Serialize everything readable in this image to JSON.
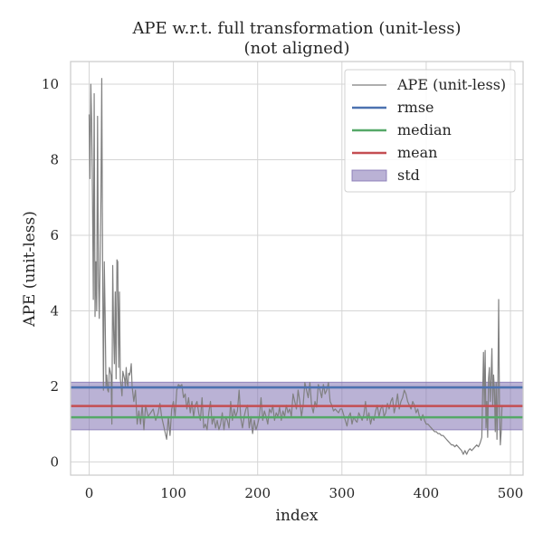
{
  "chart_data": {
    "type": "line",
    "title": "APE w.r.t. full transformation (unit-less)",
    "subtitle": "(not aligned)",
    "xlabel": "index",
    "ylabel": "APE (unit-less)",
    "xlim": [
      -22,
      515
    ],
    "ylim": [
      -0.35,
      10.6
    ],
    "xticks": [
      0,
      100,
      200,
      300,
      400,
      500
    ],
    "yticks": [
      0,
      2,
      4,
      6,
      8,
      10
    ],
    "grid": true,
    "legend_position": "top-right",
    "series": [
      {
        "name": "APE (unit-less)",
        "kind": "line",
        "color": "#808080",
        "points": [
          [
            0,
            9.2
          ],
          [
            1,
            7.5
          ],
          [
            2,
            10.0
          ],
          [
            3,
            9.0
          ],
          [
            4,
            7.0
          ],
          [
            5,
            4.3
          ],
          [
            6,
            9.75
          ],
          [
            7,
            3.85
          ],
          [
            8,
            5.3
          ],
          [
            9,
            4.0
          ],
          [
            10,
            9.15
          ],
          [
            11,
            5.0
          ],
          [
            12,
            3.8
          ],
          [
            13,
            5.3
          ],
          [
            14,
            7.0
          ],
          [
            15,
            10.15
          ],
          [
            16,
            5.2
          ],
          [
            17,
            1.9
          ],
          [
            18,
            5.3
          ],
          [
            19,
            3.9
          ],
          [
            20,
            2.0
          ],
          [
            21,
            2.3
          ],
          [
            22,
            1.9
          ],
          [
            23,
            1.85
          ],
          [
            24,
            2.5
          ],
          [
            25,
            2.4
          ],
          [
            26,
            2.3
          ],
          [
            27,
            1.0
          ],
          [
            28,
            5.2
          ],
          [
            29,
            3.5
          ],
          [
            30,
            2.6
          ],
          [
            31,
            4.5
          ],
          [
            32,
            2.2
          ],
          [
            33,
            5.35
          ],
          [
            34,
            5.3
          ],
          [
            35,
            2.5
          ],
          [
            36,
            4.5
          ],
          [
            37,
            2.2
          ],
          [
            38,
            2.0
          ],
          [
            39,
            1.75
          ],
          [
            40,
            2.4
          ],
          [
            41,
            2.3
          ],
          [
            42,
            2.2
          ],
          [
            43,
            2.0
          ],
          [
            44,
            2.5
          ],
          [
            45,
            2.1
          ],
          [
            46,
            2.0
          ],
          [
            47,
            2.35
          ],
          [
            48,
            2.3
          ],
          [
            49,
            2.4
          ],
          [
            50,
            2.6
          ],
          [
            51,
            2.0
          ],
          [
            53,
            1.6
          ],
          [
            55,
            1.9
          ],
          [
            57,
            1.0
          ],
          [
            59,
            1.35
          ],
          [
            61,
            1.0
          ],
          [
            63,
            1.5
          ],
          [
            65,
            0.85
          ],
          [
            67,
            1.5
          ],
          [
            70,
            1.2
          ],
          [
            73,
            1.3
          ],
          [
            76,
            1.4
          ],
          [
            79,
            1.1
          ],
          [
            82,
            1.3
          ],
          [
            84,
            1.55
          ],
          [
            86,
            1.2
          ],
          [
            88,
            1.0
          ],
          [
            90,
            0.8
          ],
          [
            92,
            0.6
          ],
          [
            94,
            1.2
          ],
          [
            96,
            0.7
          ],
          [
            98,
            1.4
          ],
          [
            100,
            1.6
          ],
          [
            102,
            1.2
          ],
          [
            104,
            1.9
          ],
          [
            106,
            2.05
          ],
          [
            108,
            2.0
          ],
          [
            110,
            2.05
          ],
          [
            112,
            1.7
          ],
          [
            114,
            1.8
          ],
          [
            116,
            1.4
          ],
          [
            118,
            1.7
          ],
          [
            120,
            1.3
          ],
          [
            122,
            1.6
          ],
          [
            124,
            1.2
          ],
          [
            126,
            1.5
          ],
          [
            128,
            1.6
          ],
          [
            130,
            1.3
          ],
          [
            132,
            1.1
          ],
          [
            134,
            1.7
          ],
          [
            136,
            0.9
          ],
          [
            138,
            1.0
          ],
          [
            140,
            0.85
          ],
          [
            142,
            1.3
          ],
          [
            144,
            1.6
          ],
          [
            146,
            1.0
          ],
          [
            148,
            1.2
          ],
          [
            150,
            0.9
          ],
          [
            152,
            1.1
          ],
          [
            154,
            0.85
          ],
          [
            156,
            1.0
          ],
          [
            158,
            1.3
          ],
          [
            160,
            0.85
          ],
          [
            162,
            1.2
          ],
          [
            164,
            1.1
          ],
          [
            166,
            0.9
          ],
          [
            168,
            1.6
          ],
          [
            170,
            1.1
          ],
          [
            172,
            1.4
          ],
          [
            174,
            1.2
          ],
          [
            176,
            1.35
          ],
          [
            178,
            1.9
          ],
          [
            180,
            1.15
          ],
          [
            182,
            0.9
          ],
          [
            184,
            1.2
          ],
          [
            186,
            1.4
          ],
          [
            188,
            1.5
          ],
          [
            190,
            0.9
          ],
          [
            192,
            1.2
          ],
          [
            194,
            0.75
          ],
          [
            196,
            1.1
          ],
          [
            198,
            0.85
          ],
          [
            200,
            1.0
          ],
          [
            202,
            1.2
          ],
          [
            204,
            1.7
          ],
          [
            206,
            1.1
          ],
          [
            208,
            1.35
          ],
          [
            210,
            1.2
          ],
          [
            212,
            1.0
          ],
          [
            214,
            1.4
          ],
          [
            216,
            1.3
          ],
          [
            218,
            1.5
          ],
          [
            220,
            1.1
          ],
          [
            222,
            1.3
          ],
          [
            224,
            1.2
          ],
          [
            226,
            1.45
          ],
          [
            228,
            1.1
          ],
          [
            230,
            1.35
          ],
          [
            232,
            1.2
          ],
          [
            234,
            1.5
          ],
          [
            236,
            1.3
          ],
          [
            238,
            1.4
          ],
          [
            240,
            1.2
          ],
          [
            242,
            1.8
          ],
          [
            244,
            1.6
          ],
          [
            246,
            1.4
          ],
          [
            248,
            1.9
          ],
          [
            250,
            1.6
          ],
          [
            252,
            1.2
          ],
          [
            254,
            1.5
          ],
          [
            256,
            2.1
          ],
          [
            258,
            1.9
          ],
          [
            260,
            1.7
          ],
          [
            262,
            2.1
          ],
          [
            264,
            1.5
          ],
          [
            266,
            1.3
          ],
          [
            268,
            1.6
          ],
          [
            270,
            1.45
          ],
          [
            272,
            2.05
          ],
          [
            274,
            1.9
          ],
          [
            276,
            1.7
          ],
          [
            278,
            2.05
          ],
          [
            280,
            1.8
          ],
          [
            282,
            1.9
          ],
          [
            284,
            2.1
          ],
          [
            286,
            1.6
          ],
          [
            288,
            1.5
          ],
          [
            290,
            1.35
          ],
          [
            292,
            1.4
          ],
          [
            294,
            1.35
          ],
          [
            296,
            1.3
          ],
          [
            298,
            1.4
          ],
          [
            300,
            1.4
          ],
          [
            302,
            1.25
          ],
          [
            304,
            1.1
          ],
          [
            306,
            0.95
          ],
          [
            308,
            1.2
          ],
          [
            310,
            1.3
          ],
          [
            312,
            1.0
          ],
          [
            314,
            1.2
          ],
          [
            316,
            1.1
          ],
          [
            318,
            1.05
          ],
          [
            320,
            1.3
          ],
          [
            322,
            1.2
          ],
          [
            324,
            1.1
          ],
          [
            326,
            1.25
          ],
          [
            328,
            1.6
          ],
          [
            330,
            1.1
          ],
          [
            332,
            1.3
          ],
          [
            334,
            1.0
          ],
          [
            336,
            1.2
          ],
          [
            338,
            1.1
          ],
          [
            340,
            1.35
          ],
          [
            342,
            1.5
          ],
          [
            344,
            1.2
          ],
          [
            346,
            1.4
          ],
          [
            348,
            1.5
          ],
          [
            350,
            1.2
          ],
          [
            352,
            1.3
          ],
          [
            354,
            1.55
          ],
          [
            356,
            1.4
          ],
          [
            358,
            1.6
          ],
          [
            360,
            1.7
          ],
          [
            362,
            1.3
          ],
          [
            364,
            1.5
          ],
          [
            366,
            1.8
          ],
          [
            368,
            1.4
          ],
          [
            370,
            1.6
          ],
          [
            372,
            1.7
          ],
          [
            374,
            1.9
          ],
          [
            376,
            1.8
          ],
          [
            378,
            1.6
          ],
          [
            380,
            1.5
          ],
          [
            382,
            1.4
          ],
          [
            384,
            1.6
          ],
          [
            386,
            1.5
          ],
          [
            388,
            1.3
          ],
          [
            390,
            1.4
          ],
          [
            392,
            1.2
          ],
          [
            394,
            1.1
          ],
          [
            396,
            1.25
          ],
          [
            398,
            1.1
          ],
          [
            400,
            1.0
          ],
          [
            402,
            1.0
          ],
          [
            404,
            0.95
          ],
          [
            406,
            0.9
          ],
          [
            408,
            0.85
          ],
          [
            410,
            0.8
          ],
          [
            412,
            0.8
          ],
          [
            414,
            0.75
          ],
          [
            416,
            0.75
          ],
          [
            418,
            0.7
          ],
          [
            420,
            0.7
          ],
          [
            422,
            0.65
          ],
          [
            424,
            0.6
          ],
          [
            426,
            0.55
          ],
          [
            428,
            0.5
          ],
          [
            430,
            0.45
          ],
          [
            432,
            0.45
          ],
          [
            434,
            0.4
          ],
          [
            436,
            0.45
          ],
          [
            438,
            0.4
          ],
          [
            440,
            0.35
          ],
          [
            442,
            0.3
          ],
          [
            444,
            0.2
          ],
          [
            446,
            0.3
          ],
          [
            448,
            0.2
          ],
          [
            450,
            0.3
          ],
          [
            452,
            0.35
          ],
          [
            454,
            0.3
          ],
          [
            456,
            0.35
          ],
          [
            458,
            0.4
          ],
          [
            460,
            0.45
          ],
          [
            462,
            0.4
          ],
          [
            464,
            0.5
          ],
          [
            466,
            0.65
          ],
          [
            468,
            2.9
          ],
          [
            469,
            1.5
          ],
          [
            470,
            2.95
          ],
          [
            471,
            0.9
          ],
          [
            472,
            1.6
          ],
          [
            473,
            0.65
          ],
          [
            474,
            2.2
          ],
          [
            475,
            2.5
          ],
          [
            476,
            1.6
          ],
          [
            477,
            2.2
          ],
          [
            478,
            3.0
          ],
          [
            479,
            1.5
          ],
          [
            480,
            2.3
          ],
          [
            481,
            1.9
          ],
          [
            482,
            0.8
          ],
          [
            483,
            2.1
          ],
          [
            484,
            0.6
          ],
          [
            485,
            1.8
          ],
          [
            486,
            4.3
          ],
          [
            487,
            1.4
          ],
          [
            488,
            0.45
          ],
          [
            489,
            0.8
          ],
          [
            490,
            1.5
          ]
        ]
      },
      {
        "name": "rmse",
        "kind": "hline",
        "value": 1.97,
        "color": "#4c72b0"
      },
      {
        "name": "median",
        "kind": "hline",
        "value": 1.18,
        "color": "#55a868"
      },
      {
        "name": "mean",
        "kind": "hline",
        "value": 1.48,
        "color": "#c44e52"
      },
      {
        "name": "std",
        "kind": "band",
        "lower": 0.85,
        "upper": 2.11,
        "color": "#8172b2"
      }
    ]
  }
}
